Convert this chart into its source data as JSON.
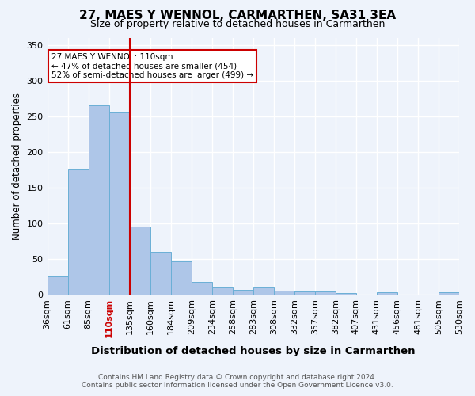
{
  "title": "27, MAES Y WENNOL, CARMARTHEN, SA31 3EA",
  "subtitle": "Size of property relative to detached houses in Carmarthen",
  "xlabel": "Distribution of detached houses by size in Carmarthen",
  "ylabel": "Number of detached properties",
  "footer_line1": "Contains HM Land Registry data © Crown copyright and database right 2024.",
  "footer_line2": "Contains public sector information licensed under the Open Government Licence v3.0.",
  "annotation_title": "27 MAES Y WENNOL: 110sqm",
  "annotation_line2": "← 47% of detached houses are smaller (454)",
  "annotation_line3": "52% of semi-detached houses are larger (499) →",
  "bin_labels": [
    "36sqm",
    "61sqm",
    "85sqm",
    "110sqm",
    "135sqm",
    "160sqm",
    "184sqm",
    "209sqm",
    "234sqm",
    "258sqm",
    "283sqm",
    "308sqm",
    "332sqm",
    "357sqm",
    "382sqm",
    "407sqm",
    "431sqm",
    "456sqm",
    "481sqm",
    "505sqm",
    "530sqm"
  ],
  "bar_values": [
    25,
    175,
    265,
    255,
    95,
    60,
    47,
    18,
    10,
    7,
    10,
    5,
    4,
    4,
    2,
    0,
    3,
    0,
    0,
    3
  ],
  "bar_color": "#aec6e8",
  "bar_edge_color": "#6aafd6",
  "highlight_line_color": "#cc0000",
  "highlight_bin_index": 3,
  "annotation_box_color": "#ffffff",
  "annotation_box_edge": "#cc0000",
  "background_color": "#eef3fb",
  "grid_color": "#ffffff",
  "ylim": [
    0,
    360
  ],
  "yticks": [
    0,
    50,
    100,
    150,
    200,
    250,
    300,
    350
  ]
}
